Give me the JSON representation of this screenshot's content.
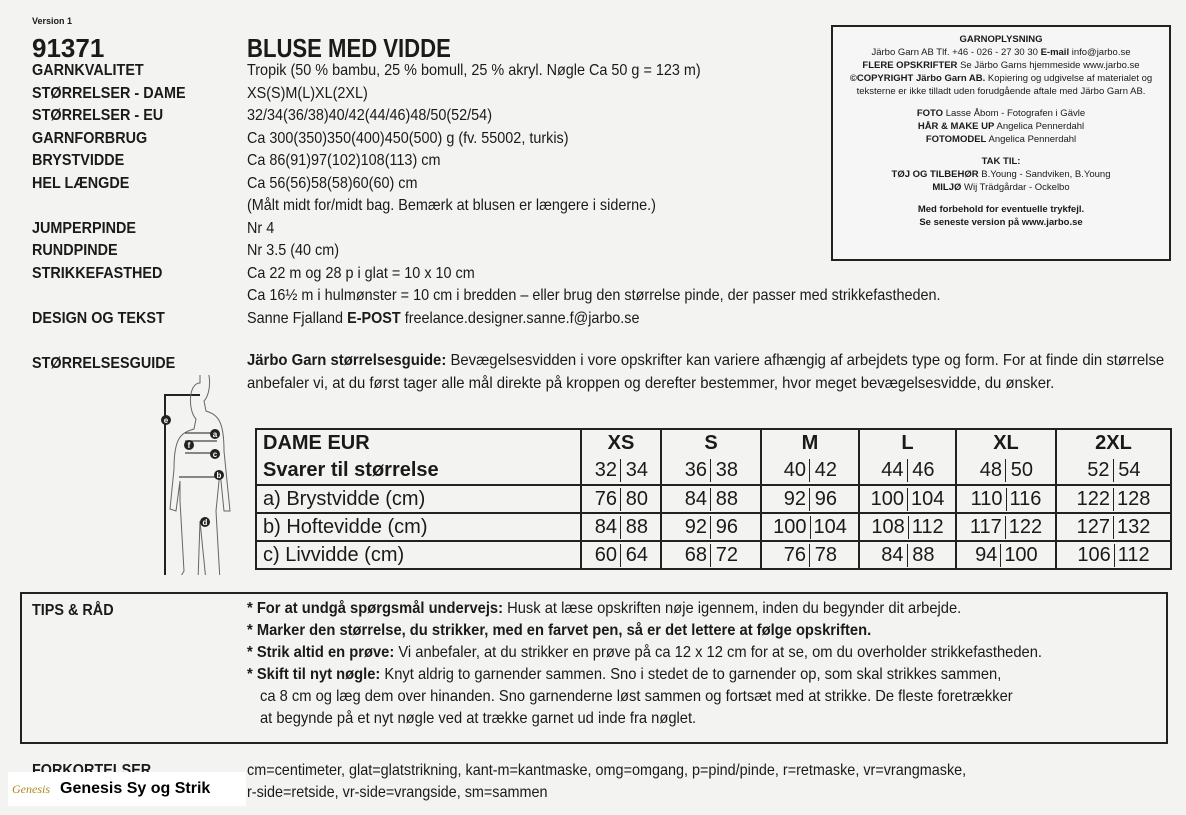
{
  "header": {
    "version": "Version 1",
    "number": "91371",
    "title": "BLUSE MED VIDDE"
  },
  "specs": [
    {
      "label": "GARNKVALITET",
      "value": "Tropik (50 % bambu, 25 % bomull, 25 % akryl. Nøgle Ca 50 g = 123 m)"
    },
    {
      "label": "STØRRELSER - DAME",
      "value": "XS(S)M(L)XL(2XL)"
    },
    {
      "label": "STØRRELSER - EU",
      "value": "32/34(36/38)40/42(44/46)48/50(52/54)"
    },
    {
      "label": "GARNFORBRUG",
      "value": "Ca 300(350)350(400)450(500) g (fv. 55002, turkis)"
    },
    {
      "label": "BRYSTVIDDE",
      "value": "Ca 86(91)97(102)108(113) cm"
    },
    {
      "label": "HEL LÆNGDE",
      "value": "Ca 56(56)58(58)60(60) cm"
    },
    {
      "label": "",
      "value": "(Målt midt for/midt bag. Bemærk at blusen er længere i siderne.)"
    },
    {
      "label": "JUMPERPINDE",
      "value": "Nr 4"
    },
    {
      "label": "RUNDPINDE",
      "value": "Nr 3.5 (40 cm)"
    },
    {
      "label": "STRIKKEFASTHED",
      "value": "Ca 22 m og 28 p i glat = 10 x 10 cm"
    },
    {
      "label": "",
      "value": "Ca 16½ m i hulmønster = 10 cm i bredden – eller brug den størrelse pinde, der passer med strikkefastheden."
    }
  ],
  "design": {
    "label": "DESIGN OG TEKST",
    "name": "Sanne Fjalland",
    "email_label": "E-POST",
    "email": "freelance.designer.sanne.f@jarbo.se"
  },
  "infobox": {
    "title": "GARNOPLYSNING",
    "line1_text": "Järbo Garn AB Tlf. +46 - 026 - 27 30 30",
    "line1_bold": "E-mail",
    "line1_end": "info@jarbo.se",
    "line2_bold": "FLERE OPSKRIFTER",
    "line2_text": "Se Järbo Garns hjemmeside www.jarbo.se",
    "line3_bold": "©COPYRIGHT Järbo Garn AB.",
    "line3_text": "Kopiering og udgivelse af materialet og",
    "line4": "teksterne er ikke tilladt uden forudgående aftale med Järbo Garn AB.",
    "foto_bold": "FOTO",
    "foto": "Lasse Åbom - Fotografen i Gävle",
    "haar_bold": "HÅR & MAKE UP",
    "haar": "Angelica Pennerdahl",
    "model_bold": "FOTOMODEL",
    "model": "Angelica Pennerdahl",
    "tak": "TAK TIL:",
    "toj_bold": "TØJ OG TILBEHØR",
    "toj": "B.Young - Sandviken, B.Young",
    "miljo_bold": "MILJØ",
    "miljo": "Wij Trädgårdar - Ockelbo",
    "note1": "Med forbehold for eventuelle trykfejl.",
    "note2": "Se seneste version på www.jarbo.se"
  },
  "guide": {
    "label": "STØRRELSESGUIDE",
    "intro_bold": "Järbo Garn størrelsesguide:",
    "intro": "Bevægelsesvidden i vore opskrifter kan variere afhængig af arbejdets type og form. For at finde din størrelse anbefaler vi, at du først tager alle mål direkte på kroppen og derefter bestemmer, hvor meget bevægelsesvidde, du ønsker.",
    "figure_markers": [
      "a",
      "b",
      "c",
      "d",
      "e",
      "f"
    ]
  },
  "size_table": {
    "header_label": "DAME EUR",
    "sizes": [
      "XS",
      "S",
      "M",
      "L",
      "XL",
      "2XL"
    ],
    "sub_label": "Svarer til størrelse",
    "eu": [
      [
        "32",
        "34"
      ],
      [
        "36",
        "38"
      ],
      [
        "40",
        "42"
      ],
      [
        "44",
        "46"
      ],
      [
        "48",
        "50"
      ],
      [
        "52",
        "54"
      ]
    ],
    "rows": [
      {
        "label": "a) Brystvidde  (cm)",
        "values": [
          [
            "76",
            "80"
          ],
          [
            "84",
            "88"
          ],
          [
            "92",
            "96"
          ],
          [
            "100",
            "104"
          ],
          [
            "110",
            "116"
          ],
          [
            "122",
            "128"
          ]
        ]
      },
      {
        "label": "b) Hoftevidde (cm)",
        "values": [
          [
            "84",
            "88"
          ],
          [
            "92",
            "96"
          ],
          [
            "100",
            "104"
          ],
          [
            "108",
            "112"
          ],
          [
            "117",
            "122"
          ],
          [
            "127",
            "132"
          ]
        ]
      },
      {
        "label": "c) Livvidde (cm)",
        "values": [
          [
            "60",
            "64"
          ],
          [
            "68",
            "72"
          ],
          [
            "76",
            "78"
          ],
          [
            "84",
            "88"
          ],
          [
            "94",
            "100"
          ],
          [
            "106",
            "112"
          ]
        ]
      }
    ]
  },
  "tips": {
    "label": "TIPS & RÅD",
    "items": [
      {
        "bold": "* For at undgå spørgsmål undervejs:",
        "text": "Husk at læse opskriften nøje igennem, inden du begynder dit arbejde."
      },
      {
        "bold": "* Marker den størrelse, du strikker, med en farvet pen, så er det lettere at følge opskriften.",
        "text": ""
      },
      {
        "bold": "* Strik altid en prøve:",
        "text": "Vi anbefaler, at du strikker en prøve på ca 12 x 12 cm for at se, om du overholder strikkefastheden."
      },
      {
        "bold": "* Skift til nyt nøgle:",
        "text": "Knyt aldrig to garnender sammen. Sno i stedet de to garnender op, som skal strikkes sammen,"
      }
    ],
    "cont": [
      "ca 8 cm og læg dem over hinanden. Sno garnenderne løst sammen og fortsæt med at strikke. De fleste foretrækker",
      "at begynde på et nyt nøgle ved at trække garnet ud inde fra nøglet."
    ]
  },
  "abbrev": {
    "label": "FORKORTELSER",
    "line1": "cm=centimeter, glat=glatstrikning, kant-m=kantmaske, omg=omgang, p=pind/pinde, r=retmaske, vr=vrangmaske,",
    "line2": "r-side=retside, vr-side=vrangside, sm=sammen"
  },
  "watermark": {
    "logo": "Genesis",
    "name": "Genesis Sy og Strik"
  }
}
